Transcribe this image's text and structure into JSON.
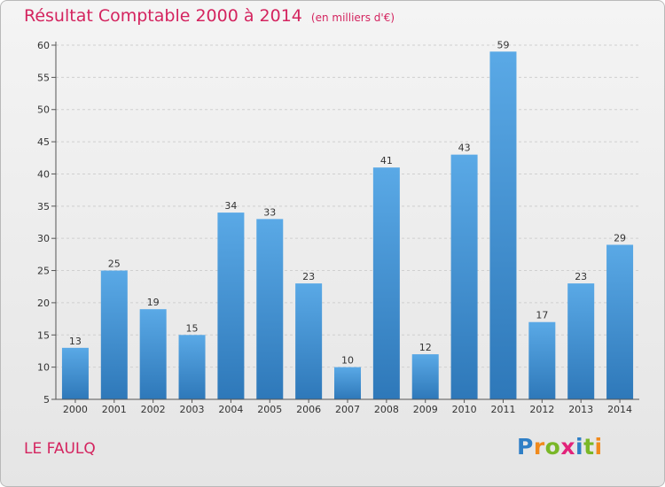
{
  "title": "Résultat Comptable 2000 à 2014",
  "unit": "(en milliers d'€)",
  "commune": "LE FAULQ",
  "logo": {
    "text": "Proxiti",
    "letters": [
      "P",
      "r",
      "o",
      "x",
      "i",
      "t",
      "i"
    ],
    "letter_colors": [
      "#2f7fc6",
      "#f08a1c",
      "#7ab727",
      "#e2237a",
      "#2f7fc6",
      "#7ab727",
      "#f08a1c"
    ]
  },
  "colors": {
    "bar_top": "#5aa9e6",
    "bar_bottom": "#2e78b9",
    "accent": "#d4245f",
    "axis": "#555555",
    "grid": "#d0d0d0"
  },
  "chart_data": {
    "type": "bar",
    "title": "Résultat Comptable 2000 à 2014",
    "ylabel": "(en milliers d'€)",
    "xlabel": "",
    "categories": [
      "2000",
      "2001",
      "2002",
      "2003",
      "2004",
      "2005",
      "2006",
      "2007",
      "2008",
      "2009",
      "2010",
      "2011",
      "2012",
      "2013",
      "2014"
    ],
    "values": [
      13,
      25,
      19,
      15,
      34,
      33,
      23,
      10,
      41,
      12,
      43,
      59,
      17,
      23,
      29
    ],
    "ylim": [
      5,
      60
    ],
    "yticks": [
      5,
      10,
      15,
      20,
      25,
      30,
      35,
      40,
      45,
      50,
      55,
      60
    ],
    "grid": true
  }
}
